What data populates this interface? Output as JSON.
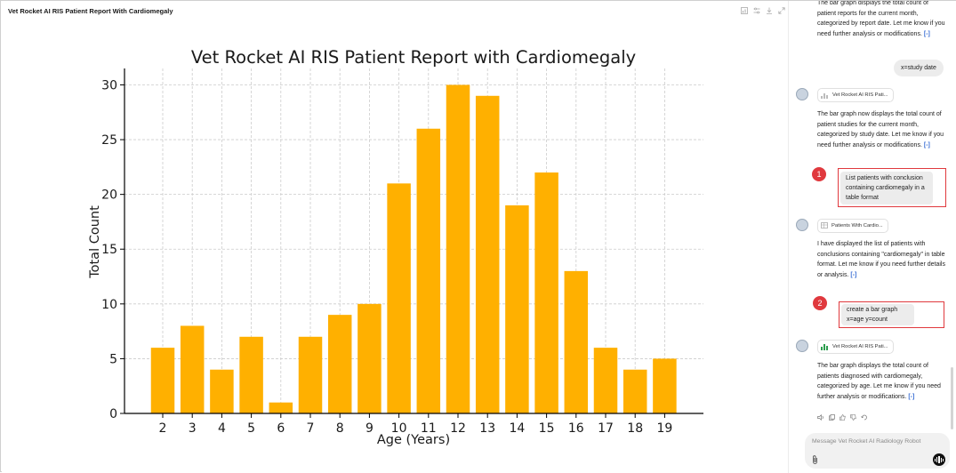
{
  "panel": {
    "title": "Vet Rocket AI RIS Patient Report With Cardiomegaly",
    "tools": [
      "chart-type-icon",
      "settings-sliders-icon",
      "download-icon",
      "expand-icon"
    ]
  },
  "chart_data": {
    "type": "bar",
    "title": "Vet Rocket AI RIS Patient Report with Cardiomegaly",
    "xlabel": "Age (Years)",
    "ylabel": "Total Count",
    "categories": [
      "2",
      "3",
      "4",
      "5",
      "6",
      "7",
      "8",
      "9",
      "10",
      "11",
      "12",
      "13",
      "14",
      "15",
      "16",
      "17",
      "18",
      "19"
    ],
    "values": [
      6,
      8,
      4,
      7,
      1,
      7,
      9,
      10,
      21,
      26,
      30,
      29,
      19,
      22,
      13,
      6,
      4,
      5
    ],
    "yticks": [
      0,
      5,
      10,
      15,
      20,
      25,
      30
    ],
    "ylim": [
      0,
      31.5
    ],
    "bar_color": "#ffb000",
    "grid": true
  },
  "chat": {
    "msg1_lines": [
      "The bar graph displays the total count of",
      "patient reports for the current month,",
      "categorized by report date. Let me know if you",
      "need further analysis or modifications."
    ],
    "user1": "x=study date",
    "chip1": "Vet Rocket AI RIS Pati...",
    "msg2_lines": [
      "The bar graph now displays the total count of",
      "patient studies for the current month,",
      "categorized by study date. Let me know if you",
      "need further analysis or modifications."
    ],
    "badge1": "1",
    "user2": "List patients with conclusion containing cardiomegaly in a table format",
    "chip2": "Patients With Cardio...",
    "msg3_lines": [
      "I have displayed the list of patients with",
      "conclusions containing \"cardiomegaly\" in table",
      "format. Let me know if you need further details",
      "or analysis."
    ],
    "badge2": "2",
    "user3": "create a bar graph x=age y=count",
    "chip3": "Vet Rocket AI RIS Pati...",
    "msg4_lines": [
      "The bar graph displays the total count of",
      "patients diagnosed with cardiomegaly,",
      "categorized by age. Let me know if you need",
      "further analysis or modifications."
    ],
    "link_mark": "[-]",
    "composer_placeholder": "Message Vet Rocket AI Radiology Robot"
  },
  "colors": {
    "highlight": "#e0393e",
    "link": "#3b6fd4",
    "chip_chart_green": "#2e9e4f"
  }
}
